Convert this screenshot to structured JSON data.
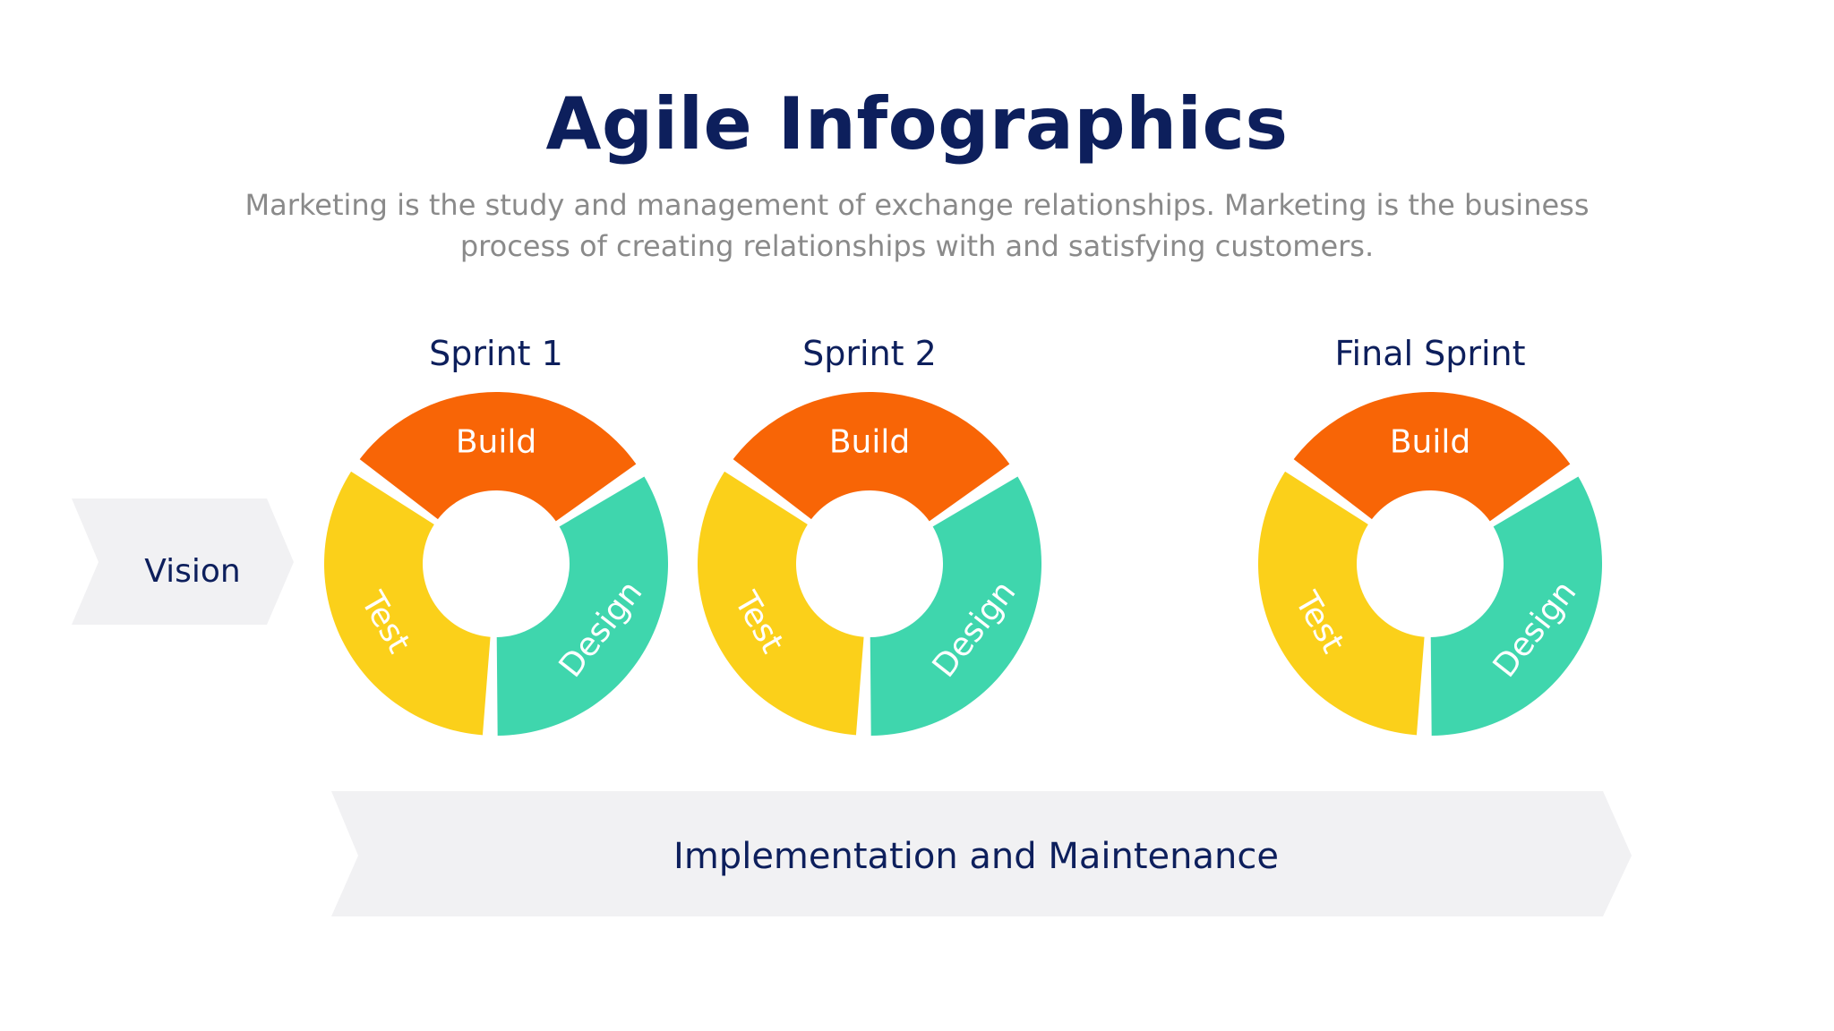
{
  "title": "Agile Infographics",
  "subtitle": "Marketing is the study and management of exchange relationships. Marketing is the business process of creating relationships with and satisfying customers.",
  "vision_label": "Vision",
  "bottom_banner_label": "Implementation and Maintenance",
  "sprints": [
    {
      "name": "Sprint 1",
      "segments": {
        "build": "Build",
        "design": "Design",
        "test": "Test"
      }
    },
    {
      "name": "Sprint 2",
      "segments": {
        "build": "Build",
        "design": "Design",
        "test": "Test"
      }
    },
    {
      "name": "Final Sprint",
      "segments": {
        "build": "Build",
        "design": "Design",
        "test": "Test"
      }
    }
  ],
  "colors": {
    "title": "#0d1f5c",
    "subtitle": "#8a8a8a",
    "text_dark": "#0d1f5c",
    "build": "#f86506",
    "design": "#3fd6ad",
    "test": "#fbd01a",
    "arrow_bg": "#f1f1f3"
  }
}
